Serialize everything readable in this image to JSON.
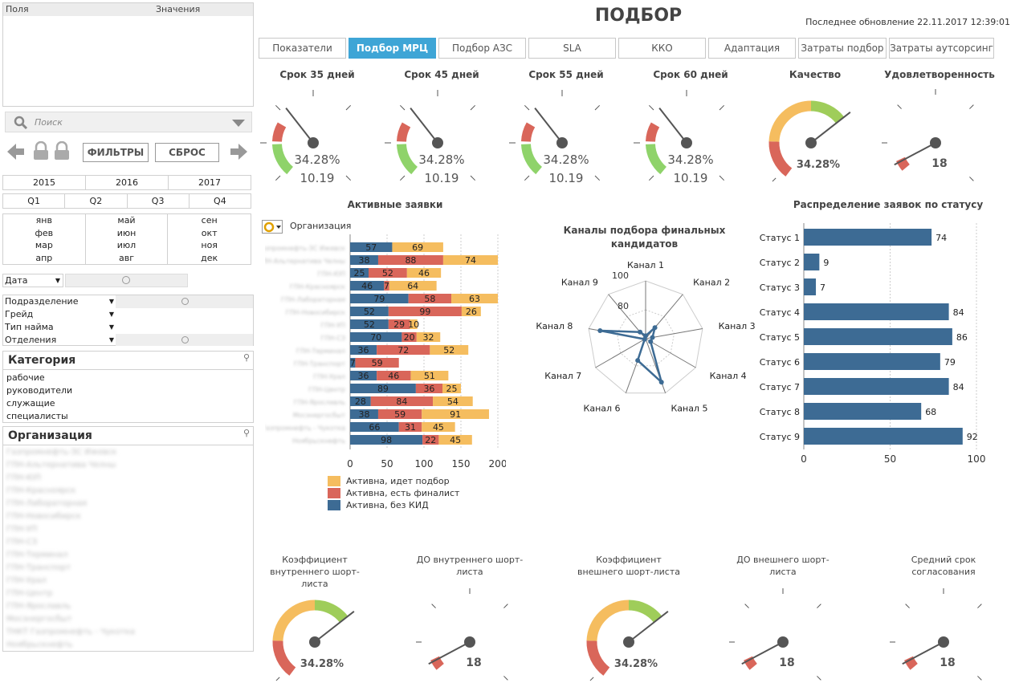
{
  "header": {
    "title": "ПОДБОР",
    "last_update": "Последнее обновление 22.11.2017 12:39:01"
  },
  "tabs": [
    {
      "label": "Показатели",
      "active": false
    },
    {
      "label": "Подбор МРЦ",
      "active": true
    },
    {
      "label": "Подбор АЗС",
      "active": false
    },
    {
      "label": "SLA",
      "active": false
    },
    {
      "label": "ККО",
      "active": false
    },
    {
      "label": "Адаптация",
      "active": false
    },
    {
      "label": "Затраты подбор",
      "active": false
    },
    {
      "label": "Затраты аутсорсинг",
      "active": false
    }
  ],
  "left_panel": {
    "fields_col": "Поля",
    "values_col": "Значения",
    "search_placeholder": "Поиск",
    "filters_btn": "ФИЛЬТРЫ",
    "reset_btn": "СБРОС",
    "years": [
      "2015",
      "2016",
      "2017"
    ],
    "quarters": [
      "Q1",
      "Q2",
      "Q3",
      "Q4"
    ],
    "months": [
      "янв",
      "май",
      "сен",
      "фев",
      "июн",
      "окт",
      "мар",
      "июл",
      "ноя",
      "апр",
      "авг",
      "дек"
    ],
    "date_label": "Дата",
    "dropdowns": [
      "Подразделение",
      "Грейд",
      "Тип найма",
      "Отделения"
    ],
    "category_title": "Категория",
    "categories": [
      "рабочие",
      "руководители",
      "служащие",
      "специалисты"
    ],
    "org_title": "Организация",
    "org_items": [
      "Газпромнефть-ЗС Ижевск",
      "ГПН-Альтернатива Челны",
      "ГПН-ЮП",
      "ГПН-Красноярск",
      "ГПН-Лабораторная",
      "ГПН-Новосибирск",
      "ГПН-УП",
      "ГПН-СЗ",
      "ГПН-Терминал",
      "ГПН-Транспорт",
      "ГПН-Урал",
      "ГПН-Центр",
      "ГПН-Ярославль",
      "Мосэнергосбыт",
      "ТНКТ Газпромнефть - Чукотка",
      "Ноябрьскнефть"
    ]
  },
  "top_gauges": [
    {
      "title": "Срок 35 дней",
      "type": "ring",
      "pct": "34.28%",
      "value": "10.19"
    },
    {
      "title": "Срок 45 дней",
      "type": "ring",
      "pct": "34.28%",
      "value": "10.19"
    },
    {
      "title": "Срок 55 дней",
      "type": "ring",
      "pct": "34.28%",
      "value": "10.19"
    },
    {
      "title": "Срок 60 дней",
      "type": "ring",
      "pct": "34.28%",
      "value": "10.19"
    },
    {
      "title": "Качество",
      "type": "full",
      "pct": "34.28%"
    },
    {
      "title": "Удовлетворенность",
      "type": "small",
      "value": "18"
    }
  ],
  "bottom_gauges": [
    {
      "title": "Коэффициент внутреннего шорт-листа",
      "type": "full",
      "pct": "34.28%"
    },
    {
      "title": "ДО внутреннего шорт-листа",
      "type": "small",
      "value": "18"
    },
    {
      "title": "Коэффициент внешнего шорт-листа",
      "type": "full",
      "pct": "34.28%"
    },
    {
      "title": "ДО внешнего шорт-листа",
      "type": "small",
      "value": "18"
    },
    {
      "title": "Средний срок согласования",
      "type": "small",
      "value": "18"
    }
  ],
  "active_chart": {
    "title": "Активные заявки",
    "dim_label": "Организация",
    "legend": [
      "Активна, идет подбор",
      "Активна, есть финалист",
      "Активна, без КИД"
    ],
    "colors": {
      "blue": "#3d6b94",
      "red": "#d9665a",
      "yellow": "#f5bd5f"
    }
  },
  "radar": {
    "title": "Каналы подбора финальных кандидатов",
    "scale_label": "100",
    "point_label": "80"
  },
  "status_chart": {
    "title": "Распределение заявок по статусу",
    "color": "#3d6b94"
  },
  "chart_data": [
    {
      "type": "bar",
      "orientation": "horizontal",
      "stacked": true,
      "categories": [
        "Газпромнефть-ЗС Ижевск",
        "ГПН-Альтернатива Челны",
        "ГПН-ЮП",
        "ГПН-Красноярск",
        "ГПН-Лабораторная",
        "ГПН-Новосибирск",
        "ГПН-УП",
        "ГПН-СЗ",
        "ГПН-Терминал",
        "ГПН-Транспорт",
        "ГПН-Урал",
        "ГПН-Центр",
        "ГПН-Ярославль",
        "Мосэнергосбыт",
        "ТНКТ Газпромнефть - Чукотка",
        "Ноябрьскнефть"
      ],
      "series": [
        {
          "name": "Активна, без КИД",
          "values": [
            57,
            38,
            25,
            46,
            79,
            52,
            52,
            70,
            36,
            7,
            36,
            89,
            28,
            38,
            66,
            98
          ]
        },
        {
          "name": "Активна, есть финалист",
          "values": [
            0,
            88,
            52,
            7,
            58,
            99,
            29,
            20,
            72,
            59,
            46,
            36,
            84,
            59,
            31,
            22
          ]
        },
        {
          "name": "Активна, идет подбор",
          "values": [
            69,
            74,
            46,
            64,
            63,
            26,
            10,
            32,
            52,
            0,
            51,
            25,
            54,
            91,
            45,
            45
          ]
        }
      ],
      "xlim": [
        0,
        200
      ],
      "xticks": [
        0,
        50,
        100,
        150,
        200
      ]
    },
    {
      "type": "radar",
      "categories": [
        "Канал 1",
        "Канал 2",
        "Канал 3",
        "Канал 4",
        "Канал 5",
        "Канал 6",
        "Канал 7",
        "Канал 8",
        "Канал 9"
      ],
      "values": [
        5,
        25,
        12,
        10,
        80,
        40,
        2,
        80,
        15
      ],
      "max": 100
    },
    {
      "type": "bar",
      "orientation": "horizontal",
      "categories": [
        "Статус 1",
        "Статус 2",
        "Статус 3",
        "Статус 4",
        "Статус 5",
        "Статус 6",
        "Статус 7",
        "Статус 8",
        "Статус 9"
      ],
      "values": [
        74,
        9,
        7,
        84,
        86,
        79,
        84,
        68,
        92
      ],
      "xlim": [
        0,
        100
      ],
      "xticks": [
        0,
        50,
        100
      ]
    }
  ]
}
